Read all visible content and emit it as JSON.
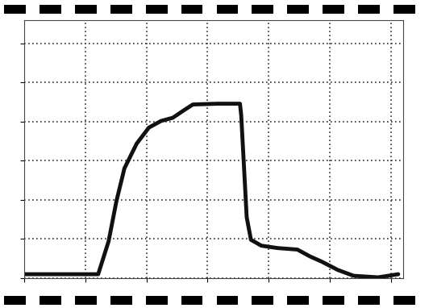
{
  "chart_data": {
    "type": "line",
    "x": [
      0,
      1.21,
      1.38,
      1.51,
      1.64,
      1.84,
      2.04,
      2.24,
      2.43,
      2.63,
      2.76,
      3.16,
      3.53,
      3.55,
      3.59,
      3.64,
      3.71,
      3.88,
      4.14,
      4.47,
      4.67,
      4.87,
      5.13,
      5.39,
      5.79,
      6.12
    ],
    "values": [
      0.1,
      0.1,
      0.94,
      1.98,
      2.81,
      3.44,
      3.85,
      4.02,
      4.1,
      4.31,
      4.44,
      4.46,
      4.46,
      4.17,
      3.02,
      1.56,
      0.98,
      0.83,
      0.77,
      0.73,
      0.56,
      0.42,
      0.21,
      0.06,
      0.02,
      0.1
    ],
    "color": "#111111",
    "xlim": [
      0,
      6.2
    ],
    "ylim": [
      0,
      6.6
    ],
    "xticks": [
      0,
      1,
      2,
      3,
      4,
      5,
      6
    ],
    "yticks": [
      0,
      1,
      2,
      3,
      4,
      5,
      6
    ],
    "grid": true,
    "tick_labels": false
  }
}
